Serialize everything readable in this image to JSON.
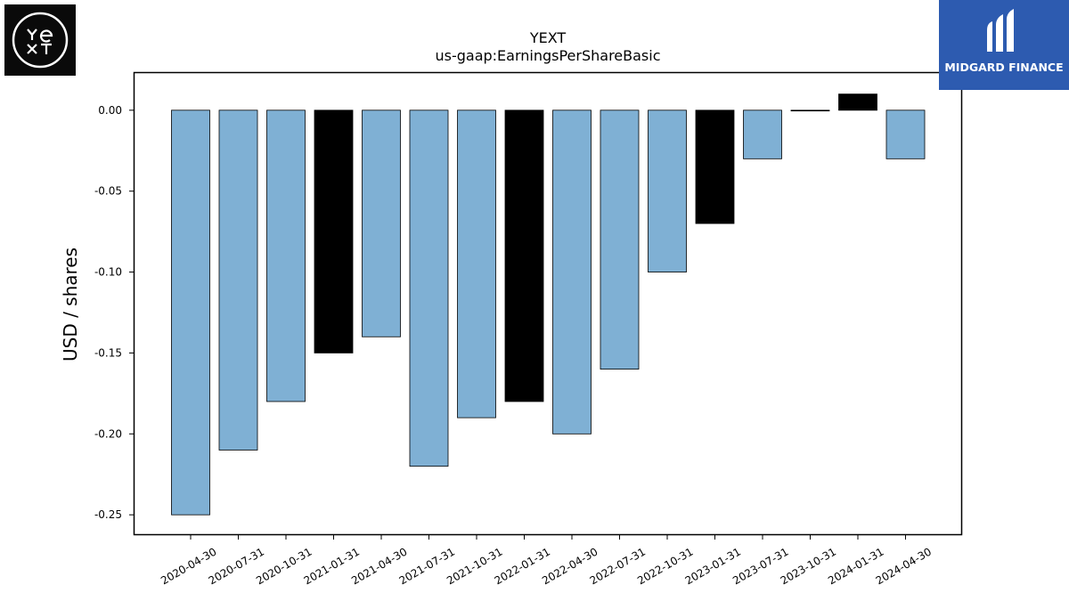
{
  "logos": {
    "left_text": "YEXT",
    "right_text": "MIDGARD FINANCE"
  },
  "colors": {
    "bar_default": "#7fb0d4",
    "bar_q4": "#000000"
  },
  "chart_data": {
    "type": "bar",
    "title": "YEXT",
    "subtitle": "us-gaap:EarningsPerShareBasic",
    "ylabel": "USD / shares",
    "xlabel": "",
    "ylim": [
      -0.262,
      0.023
    ],
    "yticks": [
      "0.00",
      "-0.05",
      "-0.10",
      "-0.15",
      "-0.20",
      "-0.25"
    ],
    "grid": false,
    "categories": [
      "2020-04-30",
      "2020-07-31",
      "2020-10-31",
      "2021-01-31",
      "2021-04-30",
      "2021-07-31",
      "2021-10-31",
      "2022-01-31",
      "2022-04-30",
      "2022-07-31",
      "2022-10-31",
      "2023-01-31",
      "2023-07-31",
      "2023-10-31",
      "2024-01-31",
      "2024-04-30"
    ],
    "values": [
      -0.25,
      -0.21,
      -0.18,
      -0.15,
      -0.14,
      -0.22,
      -0.19,
      -0.18,
      -0.2,
      -0.16,
      -0.1,
      -0.07,
      -0.03,
      0.0,
      0.01,
      -0.03
    ],
    "highlight": [
      false,
      false,
      false,
      true,
      false,
      false,
      false,
      true,
      false,
      false,
      false,
      true,
      false,
      false,
      true,
      false
    ]
  }
}
